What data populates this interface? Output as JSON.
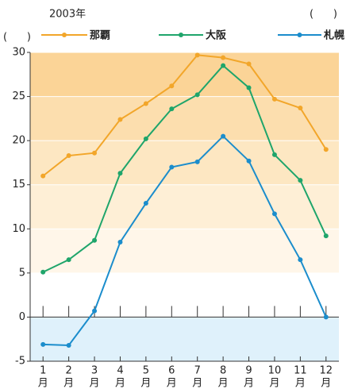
{
  "chart_data": {
    "type": "line",
    "title": "2003年",
    "annotations": [
      "(      )",
      "(      )"
    ],
    "categories": [
      "1",
      "2",
      "3",
      "4",
      "5",
      "6",
      "7",
      "8",
      "9",
      "10",
      "11",
      "12"
    ],
    "x_unit": "月",
    "series": [
      {
        "name": "那覇",
        "color": "#f2a62a",
        "values": [
          16.0,
          18.3,
          18.6,
          22.4,
          24.2,
          26.2,
          29.7,
          29.4,
          28.7,
          24.7,
          23.7,
          19.0
        ]
      },
      {
        "name": "大阪",
        "color": "#1fa56b",
        "values": [
          5.1,
          6.5,
          8.7,
          16.3,
          20.2,
          23.6,
          25.2,
          28.5,
          26.0,
          18.4,
          15.5,
          9.2
        ]
      },
      {
        "name": "札幌",
        "color": "#1b8dcc",
        "values": [
          -3.1,
          -3.2,
          0.7,
          8.5,
          12.9,
          17.0,
          17.6,
          20.5,
          17.7,
          11.7,
          6.5,
          0.0
        ]
      }
    ],
    "ylim": [
      -5,
      30
    ],
    "yticks": [
      -5,
      0,
      5,
      10,
      15,
      20,
      25,
      30
    ],
    "grid": true
  }
}
